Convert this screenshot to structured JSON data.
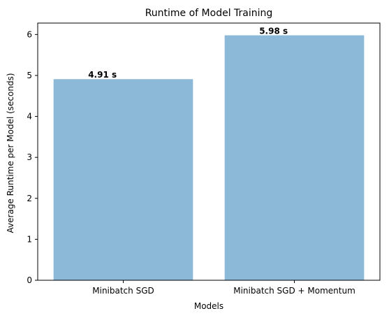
{
  "chart_data": {
    "type": "bar",
    "title": "Runtime of Model Training",
    "xlabel": "Models",
    "ylabel": "Average Runtime per Model (seconds)",
    "categories": [
      "Minibatch SGD",
      "Minibatch SGD + Momentum"
    ],
    "values": [
      4.91,
      5.98
    ],
    "data_labels": [
      "4.91 s",
      "5.98 s"
    ],
    "ylim": [
      0,
      6.279
    ],
    "yticks": [
      0,
      1,
      2,
      3,
      4,
      5,
      6
    ],
    "ytick_labels": [
      "0",
      "1",
      "2",
      "3",
      "4",
      "5",
      "6"
    ],
    "grid": false,
    "bar_color": "#8db9d9"
  }
}
